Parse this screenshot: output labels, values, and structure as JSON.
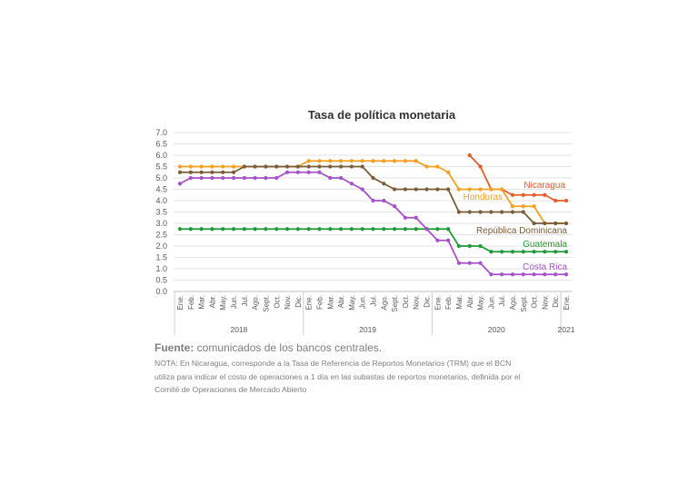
{
  "chart_data": {
    "type": "line",
    "title": "Tasa de política monetaria",
    "ylim": [
      0,
      7
    ],
    "yticks": [
      "0.0",
      "0.5",
      "1.0",
      "1.5",
      "2.0",
      "2.5",
      "3.0",
      "3.5",
      "4.0",
      "4.5",
      "5.0",
      "5.5",
      "6.0",
      "6.5",
      "7.0"
    ],
    "grid": true,
    "legend": "inline labels at right end of each series",
    "categories": [
      "Ene.",
      "Feb.",
      "Mar.",
      "Abr.",
      "May.",
      "Jun.",
      "Jul.",
      "Ago.",
      "Sept.",
      "Oct.",
      "Nov.",
      "Dic.",
      "Ene.",
      "Feb.",
      "Mar.",
      "Abr.",
      "May.",
      "Jun.",
      "Jul.",
      "Ago.",
      "Sept.",
      "Oct.",
      "Nov.",
      "Dic.",
      "Ene.",
      "Feb.",
      "Mar.",
      "Abr.",
      "May.",
      "Jun.",
      "Jul.",
      "Ago.",
      "Sept.",
      "Oct.",
      "Nov.",
      "Dic.",
      "Ene."
    ],
    "years": [
      {
        "label": "2018",
        "start": 0,
        "end": 11
      },
      {
        "label": "2019",
        "start": 12,
        "end": 23
      },
      {
        "label": "2020",
        "start": 24,
        "end": 35
      },
      {
        "label": "2021",
        "start": 36,
        "end": 36
      }
    ],
    "series": [
      {
        "name": "Nicaragua",
        "color": "#e35b2a",
        "values": [
          null,
          null,
          null,
          null,
          null,
          null,
          null,
          null,
          null,
          null,
          null,
          null,
          null,
          null,
          null,
          null,
          null,
          null,
          null,
          null,
          null,
          null,
          null,
          null,
          null,
          null,
          null,
          6.0,
          5.5,
          4.5,
          4.5,
          4.25,
          4.25,
          4.25,
          4.25,
          4.0,
          4.0
        ]
      },
      {
        "name": "Honduras",
        "color": "#f5a021",
        "values": [
          5.5,
          5.5,
          5.5,
          5.5,
          5.5,
          5.5,
          5.5,
          5.5,
          5.5,
          5.5,
          5.5,
          5.5,
          5.75,
          5.75,
          5.75,
          5.75,
          5.75,
          5.75,
          5.75,
          5.75,
          5.75,
          5.75,
          5.75,
          5.5,
          5.5,
          5.25,
          4.5,
          4.5,
          4.5,
          4.5,
          4.5,
          3.75,
          3.75,
          3.75,
          3.0,
          3.0,
          3.0
        ]
      },
      {
        "name": "República Dominicana",
        "color": "#7a5c36",
        "values": [
          5.25,
          5.25,
          5.25,
          5.25,
          5.25,
          5.25,
          5.5,
          5.5,
          5.5,
          5.5,
          5.5,
          5.5,
          5.5,
          5.5,
          5.5,
          5.5,
          5.5,
          5.5,
          5.0,
          4.75,
          4.5,
          4.5,
          4.5,
          4.5,
          4.5,
          4.5,
          3.5,
          3.5,
          3.5,
          3.5,
          3.5,
          3.5,
          3.5,
          3.0,
          3.0,
          3.0,
          3.0
        ]
      },
      {
        "name": "Guatemala",
        "color": "#1f9a3a",
        "values": [
          2.75,
          2.75,
          2.75,
          2.75,
          2.75,
          2.75,
          2.75,
          2.75,
          2.75,
          2.75,
          2.75,
          2.75,
          2.75,
          2.75,
          2.75,
          2.75,
          2.75,
          2.75,
          2.75,
          2.75,
          2.75,
          2.75,
          2.75,
          2.75,
          2.75,
          2.75,
          2.0,
          2.0,
          2.0,
          1.75,
          1.75,
          1.75,
          1.75,
          1.75,
          1.75,
          1.75,
          1.75
        ]
      },
      {
        "name": "Costa Rica",
        "color": "#a751c9",
        "values": [
          4.75,
          5.0,
          5.0,
          5.0,
          5.0,
          5.0,
          5.0,
          5.0,
          5.0,
          5.0,
          5.25,
          5.25,
          5.25,
          5.25,
          5.0,
          5.0,
          4.75,
          4.5,
          4.0,
          4.0,
          3.75,
          3.25,
          3.25,
          2.75,
          2.25,
          2.25,
          1.25,
          1.25,
          1.25,
          0.75,
          0.75,
          0.75,
          0.75,
          0.75,
          0.75,
          0.75,
          0.75
        ]
      }
    ]
  },
  "footer": {
    "source_label": "Fuente:",
    "source_text": " comunicados de los bancos centrales.",
    "note_lines": [
      "NOTA: En Nicaragua, corresponde a la Tasa de Referencia de Reportos Monetarios (TRM) que el BCN",
      "utiliza para indicar el costo de operaciones a 1 día en las subastas de reportos monetarios, definida por el",
      "Comité de Operaciones de Mercado Abierto"
    ]
  }
}
